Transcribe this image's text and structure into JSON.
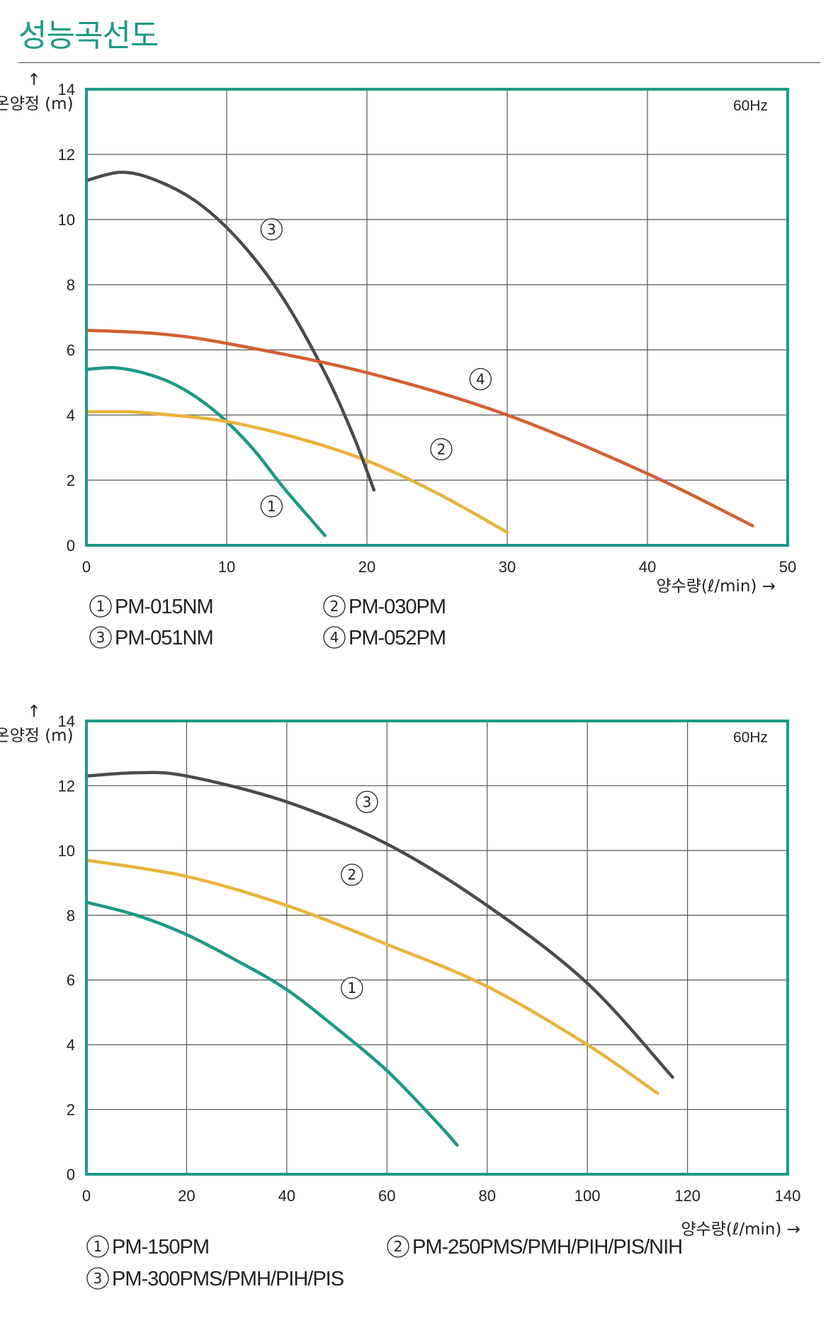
{
  "page_title": "성능곡선도",
  "chart_data": [
    {
      "type": "line",
      "frequency_label": "60Hz",
      "y_axis_label": "↑ 온양정 (m)",
      "x_axis_label": "양수량(ℓ/min) →",
      "xlim": [
        0,
        50
      ],
      "ylim": [
        0,
        14
      ],
      "x_ticks": [
        0,
        10,
        20,
        30,
        40,
        50
      ],
      "y_ticks": [
        0,
        2,
        4,
        6,
        8,
        10,
        12,
        14
      ],
      "grid": true,
      "series": [
        {
          "marker": "①",
          "name": "PM-015NM",
          "color": "#1c9a83",
          "x": [
            0,
            2,
            4,
            6,
            8,
            10,
            12,
            14,
            16,
            17
          ],
          "y": [
            5.4,
            5.45,
            5.3,
            5.0,
            4.5,
            3.8,
            2.9,
            1.8,
            0.8,
            0.3
          ],
          "marker_pos": [
            13.2,
            1.2
          ]
        },
        {
          "marker": "②",
          "name": "PM-030PM",
          "color": "#eab23c",
          "x": [
            0,
            3,
            6,
            10,
            15,
            20,
            25,
            30
          ],
          "y": [
            4.1,
            4.1,
            4.0,
            3.8,
            3.3,
            2.6,
            1.6,
            0.4
          ],
          "marker_pos": [
            25.3,
            2.95
          ]
        },
        {
          "marker": "③",
          "name": "PM-051NM",
          "color": "#4b4b4b",
          "x": [
            0,
            2.5,
            5,
            8,
            11,
            14,
            17,
            19,
            20.5
          ],
          "y": [
            11.2,
            11.45,
            11.2,
            10.5,
            9.3,
            7.6,
            5.3,
            3.4,
            1.7
          ],
          "marker_pos": [
            13.2,
            9.7
          ]
        },
        {
          "marker": "④",
          "name": "PM-052PM",
          "color": "#d25f34",
          "x": [
            0,
            5,
            10,
            20,
            30,
            40,
            47.5
          ],
          "y": [
            6.6,
            6.5,
            6.2,
            5.3,
            4.0,
            2.2,
            0.6
          ],
          "marker_pos": [
            28.1,
            5.1
          ]
        }
      ],
      "legend": [
        {
          "marker": "①",
          "name": "PM-015NM"
        },
        {
          "marker": "②",
          "name": "PM-030PM"
        },
        {
          "marker": "③",
          "name": "PM-051NM"
        },
        {
          "marker": "④",
          "name": "PM-052PM"
        }
      ]
    },
    {
      "type": "line",
      "frequency_label": "60Hz",
      "y_axis_label": "↑ 온양정 (m)",
      "x_axis_label": "양수량(ℓ/min) →",
      "xlim": [
        0,
        140
      ],
      "ylim": [
        0,
        14
      ],
      "x_ticks": [
        0,
        20,
        40,
        60,
        80,
        100,
        120,
        140
      ],
      "y_ticks": [
        0,
        2,
        4,
        6,
        8,
        10,
        12,
        14
      ],
      "grid": true,
      "series": [
        {
          "marker": "①",
          "name": "PM-150PM",
          "color": "#1c9a83",
          "x": [
            0,
            10,
            20,
            30,
            40,
            50,
            60,
            70,
            74
          ],
          "y": [
            8.4,
            8.0,
            7.4,
            6.6,
            5.7,
            4.5,
            3.2,
            1.6,
            0.9
          ],
          "marker_pos": [
            53,
            5.75
          ]
        },
        {
          "marker": "②",
          "name": "PM-250PMS/PMH/PIH/PIS/NIH",
          "color": "#eab23c",
          "x": [
            0,
            20,
            40,
            60,
            80,
            100,
            114
          ],
          "y": [
            9.7,
            9.2,
            8.3,
            7.1,
            5.8,
            4.0,
            2.5
          ],
          "marker_pos": [
            53,
            9.25
          ]
        },
        {
          "marker": "③",
          "name": "PM-300PMS/PMH/PIH/PIS",
          "color": "#4b4b4b",
          "x": [
            0,
            10,
            20,
            40,
            60,
            80,
            100,
            117
          ],
          "y": [
            12.3,
            12.4,
            12.3,
            11.5,
            10.2,
            8.3,
            5.9,
            3.0
          ],
          "marker_pos": [
            56,
            11.5
          ]
        }
      ],
      "legend": [
        {
          "marker": "①",
          "name": "PM-150PM"
        },
        {
          "marker": "②",
          "name": "PM-250PMS/PMH/PIH/PIS/NIH"
        },
        {
          "marker": "③",
          "name": "PM-300PMS/PMH/PIH/PIS"
        }
      ]
    }
  ]
}
